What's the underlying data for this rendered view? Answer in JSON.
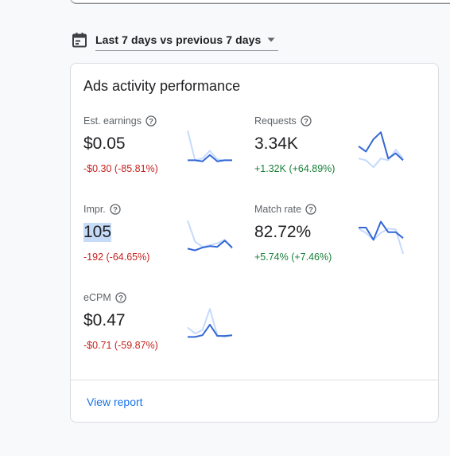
{
  "date_range": {
    "label": "Last 7 days vs previous 7 days"
  },
  "card": {
    "title": "Ads activity performance",
    "metrics": [
      {
        "label": "Est. earnings",
        "value": "$0.05",
        "change": "-$0.30 (-85.81%)",
        "trend": "negative",
        "spark_current": [
          0.15,
          0.15,
          0.12,
          0.3,
          0.12,
          0.15,
          0.15
        ],
        "spark_previous": [
          1.0,
          0.15,
          0.2,
          0.42,
          0.18,
          0.15,
          0.15
        ]
      },
      {
        "label": "Requests",
        "value": "3.34K",
        "change": "+1.32K (+64.89%)",
        "trend": "positive",
        "spark_current": [
          0.55,
          0.4,
          0.75,
          0.95,
          0.2,
          0.35,
          0.15
        ],
        "spark_previous": [
          0.2,
          0.15,
          -0.05,
          0.2,
          0.15,
          0.45,
          0.2
        ]
      },
      {
        "label": "Impr.",
        "value": "105",
        "change": "-192 (-64.65%)",
        "trend": "negative",
        "spark_current": [
          0.15,
          0.1,
          0.18,
          0.22,
          0.2,
          0.38,
          0.18
        ],
        "spark_previous": [
          0.95,
          0.35,
          0.2,
          0.25,
          0.3,
          0.4,
          0.15
        ]
      },
      {
        "label": "Match rate",
        "value": "82.72%",
        "change": "+5.74% (+7.46%)",
        "trend": "positive",
        "spark_current": [
          0.75,
          0.75,
          0.4,
          0.92,
          0.62,
          0.62,
          0.45
        ],
        "spark_previous": [
          0.72,
          0.6,
          0.4,
          0.6,
          0.72,
          0.7,
          0.0
        ]
      },
      {
        "label": "eCPM",
        "value": "$0.47",
        "change": "-$0.71 (-59.87%)",
        "trend": "negative",
        "spark_current": [
          0.15,
          0.15,
          0.2,
          0.5,
          0.18,
          0.18,
          0.2
        ],
        "spark_previous": [
          0.42,
          0.25,
          0.35,
          0.95,
          0.2,
          0.15,
          0.2
        ]
      }
    ],
    "view_report_label": "View report"
  },
  "colors": {
    "accent": "#1a73e8",
    "current_series": "#3367d6",
    "previous_series": "#c6dafc",
    "negative": "#c5221f",
    "positive": "#188038"
  }
}
